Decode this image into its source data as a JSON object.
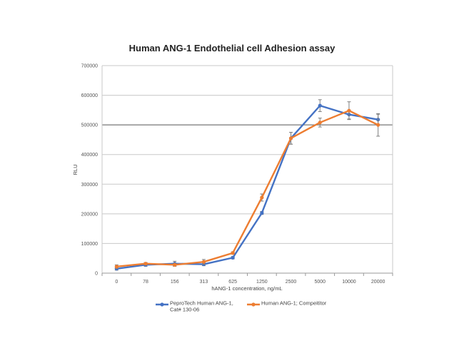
{
  "chart_data": {
    "type": "line",
    "title": "Human ANG-1 Endothelial cell Adhesion assay",
    "xlabel": "hANG-1 concentration, ng/mL",
    "ylabel": "RLU",
    "categories": [
      "0",
      "78",
      "156",
      "313",
      "625",
      "1250",
      "2500",
      "5000",
      "10000",
      "20000"
    ],
    "ylim": [
      0,
      700000
    ],
    "yticks": [
      0,
      100000,
      200000,
      300000,
      400000,
      500000,
      600000,
      700000
    ],
    "grid": true,
    "legend_position": "bottom",
    "series": [
      {
        "name": "PeproTech Human ANG-1, Cat# 130-06",
        "legend_lines": [
          "PeproTech Human ANG-1,",
          "Cat# 130-06"
        ],
        "color": "#4472C4",
        "values": [
          15000,
          28000,
          32000,
          30000,
          52000,
          203000,
          455000,
          565000,
          535000,
          518000
        ],
        "errors": [
          5000,
          5000,
          8000,
          5000,
          4000,
          5000,
          20000,
          20000,
          15000,
          18000
        ]
      },
      {
        "name": "Human ANG-1; Competitor",
        "legend_lines": [
          "Human ANG-1; Compeititor"
        ],
        "color": "#ED7D31",
        "values": [
          22000,
          32000,
          28000,
          38000,
          68000,
          255000,
          455000,
          508000,
          548000,
          500000
        ],
        "errors": [
          6000,
          4000,
          5000,
          8000,
          4000,
          12000,
          20000,
          15000,
          30000,
          38000
        ]
      }
    ]
  }
}
